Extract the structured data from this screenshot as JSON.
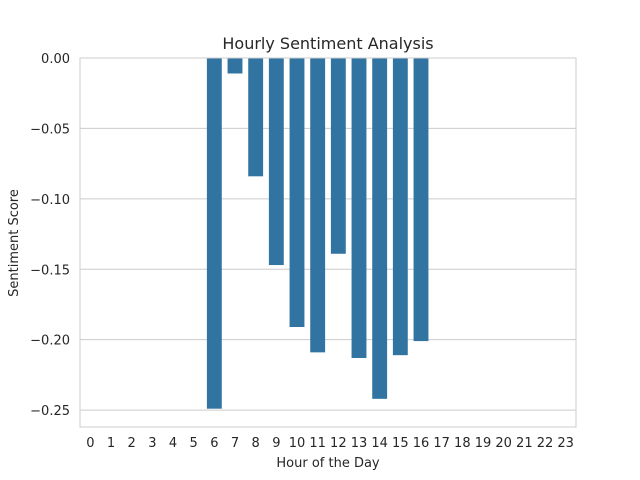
{
  "chart_data": {
    "type": "bar",
    "title": "Hourly Sentiment Analysis",
    "xlabel": "Hour of the Day",
    "ylabel": "Sentiment Score",
    "categories": [
      "0",
      "1",
      "2",
      "3",
      "4",
      "5",
      "6",
      "7",
      "8",
      "9",
      "10",
      "11",
      "12",
      "13",
      "14",
      "15",
      "16",
      "17",
      "18",
      "19",
      "20",
      "21",
      "22",
      "23"
    ],
    "values": [
      0,
      0,
      0,
      0,
      0,
      0,
      -0.249,
      -0.011,
      -0.084,
      -0.147,
      -0.191,
      -0.209,
      -0.139,
      -0.213,
      -0.242,
      -0.211,
      -0.201,
      0,
      0,
      0,
      0,
      0,
      0,
      0
    ],
    "ylim": [
      -0.262,
      0.0
    ],
    "yticks": [
      "0.00",
      "−0.05",
      "−0.10",
      "−0.15",
      "−0.20",
      "−0.25"
    ],
    "ytick_values": [
      0,
      -0.05,
      -0.1,
      -0.15,
      -0.2,
      -0.25
    ],
    "bar_color": "#3274a1",
    "grid": "horizontal"
  }
}
